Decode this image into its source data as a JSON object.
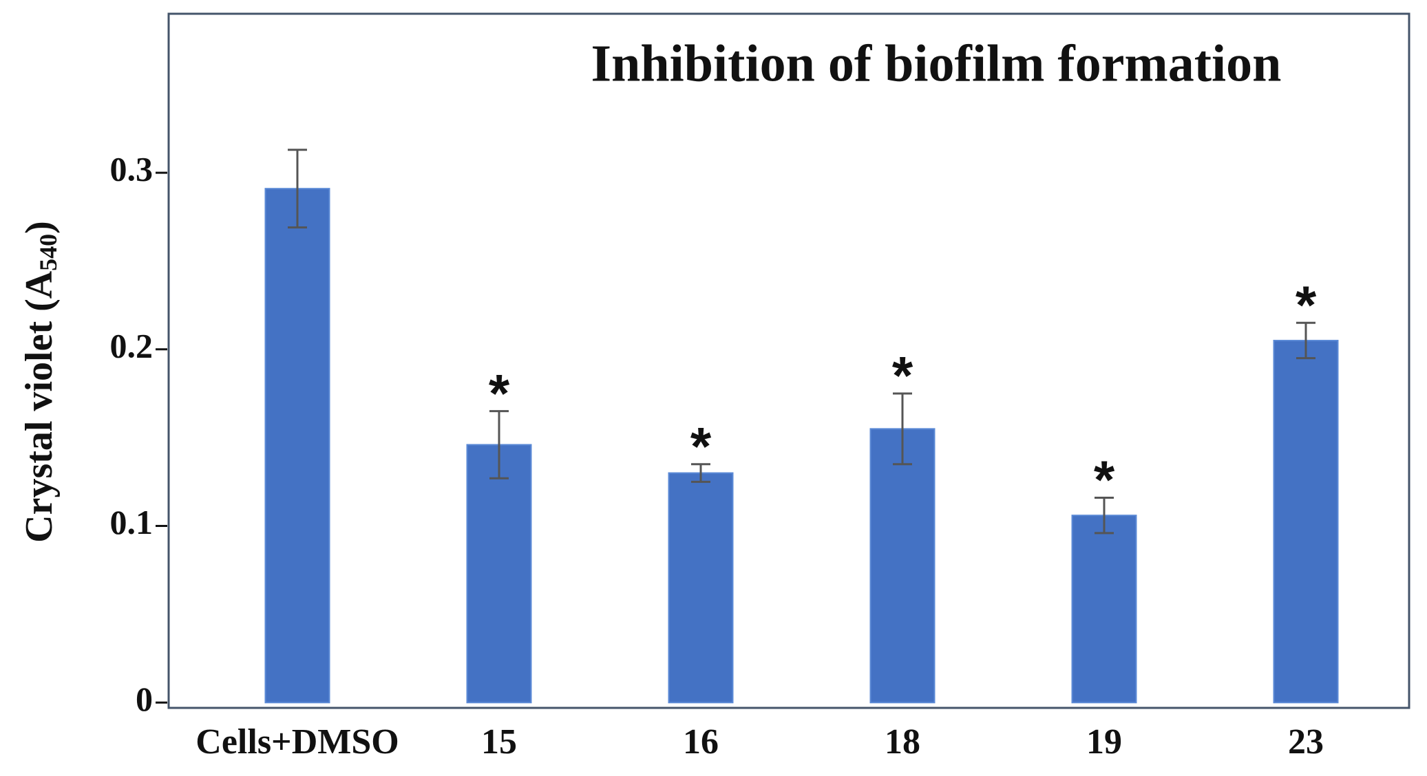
{
  "chart_data": {
    "type": "bar",
    "title": "Inhibition of biofilm formation",
    "ylabel": [
      "Crystal violet (A",
      "540",
      ")"
    ],
    "categories": [
      "Cells+DMSO",
      "15",
      "16",
      "18",
      "19",
      "23"
    ],
    "values": [
      0.291,
      0.146,
      0.13,
      0.155,
      0.106,
      0.205
    ],
    "errors": [
      0.022,
      0.019,
      0.005,
      0.02,
      0.01,
      0.01
    ],
    "significance": [
      null,
      "*",
      "*",
      "*",
      "*",
      "*"
    ],
    "color": "#4472c4",
    "error_color": "#555555",
    "ylim": [
      -0.003,
      0.39
    ],
    "yticks": [
      0,
      0.1,
      0.2,
      0.3
    ],
    "grid": false
  }
}
